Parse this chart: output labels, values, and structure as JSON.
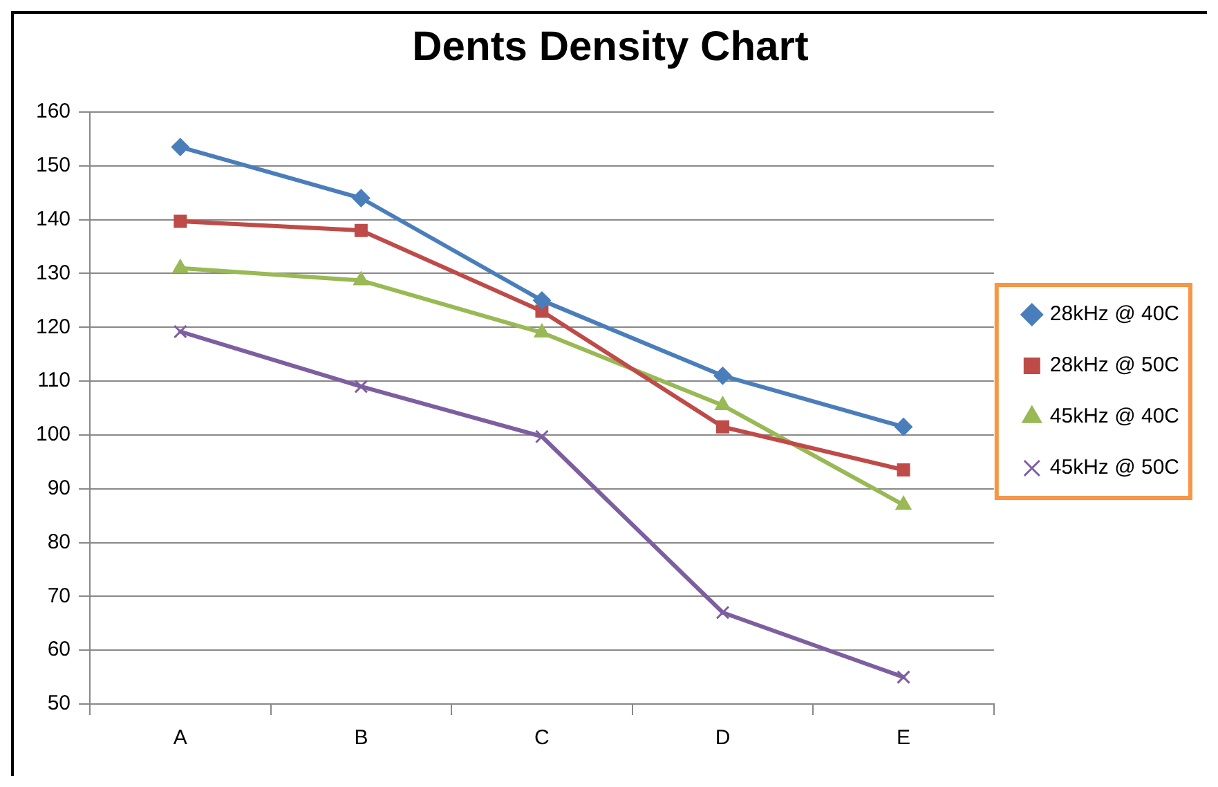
{
  "chart_data": {
    "type": "line",
    "title": "Dents Density Chart",
    "categories": [
      "A",
      "B",
      "C",
      "D",
      "E"
    ],
    "series": [
      {
        "name": "28kHz @ 40C",
        "color": "#4a7ebb",
        "marker": "diamond",
        "values": [
          153.5,
          144,
          125,
          111,
          101.5
        ]
      },
      {
        "name": "28kHz @ 50C",
        "color": "#be4b48",
        "marker": "square",
        "values": [
          139.7,
          138,
          123,
          101.5,
          93.5
        ]
      },
      {
        "name": "45kHz @ 40C",
        "color": "#98b954",
        "marker": "triangle",
        "values": [
          131,
          128.7,
          119,
          105.5,
          87
        ]
      },
      {
        "name": "45kHz @ 50C",
        "color": "#7d5fa0",
        "marker": "cross",
        "values": [
          119.2,
          109,
          99.7,
          67,
          55
        ]
      }
    ],
    "ylim": [
      50,
      160
    ],
    "yticks": [
      50,
      60,
      70,
      80,
      90,
      100,
      110,
      120,
      130,
      140,
      150,
      160
    ],
    "grid": "y",
    "legend": "right",
    "line_style": "solid"
  }
}
